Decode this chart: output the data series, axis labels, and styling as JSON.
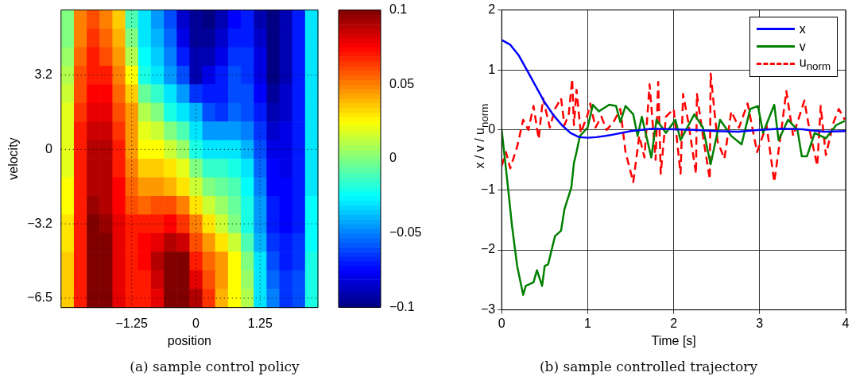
{
  "chart_data": [
    {
      "type": "heatmap",
      "xlabel": "position",
      "ylabel": "velocity",
      "grid": true,
      "categories": [
        null,
        null,
        null,
        null,
        null,
        "−1.25",
        null,
        null,
        null,
        null,
        "0",
        null,
        null,
        null,
        null,
        "1.25",
        null,
        null,
        null,
        null
      ],
      "y_categories": [
        null,
        null,
        null,
        "3.2",
        null,
        null,
        null,
        "0",
        null,
        null,
        null,
        "−3.2",
        null,
        null,
        null,
        "−6.5"
      ],
      "cells": [
        [
          0,
          0.05,
          0.06,
          0.05,
          0.035,
          -0.01,
          -0.03,
          -0.045,
          -0.06,
          -0.085,
          -0.095,
          -0.1,
          -0.09,
          -0.075,
          -0.07,
          -0.09,
          -0.1,
          -0.09,
          -0.07,
          -0.03
        ],
        [
          0,
          0.05,
          0.065,
          0.055,
          0.04,
          0,
          -0.03,
          -0.04,
          -0.055,
          -0.08,
          -0.095,
          -0.095,
          -0.085,
          -0.07,
          -0.07,
          -0.085,
          -0.1,
          -0.09,
          -0.07,
          -0.03
        ],
        [
          0.005,
          0.055,
          0.07,
          0.06,
          0.045,
          0.01,
          -0.025,
          -0.035,
          -0.05,
          -0.07,
          -0.09,
          -0.09,
          -0.08,
          -0.065,
          -0.065,
          -0.08,
          -0.1,
          -0.09,
          -0.07,
          -0.03
        ],
        [
          0.01,
          0.06,
          0.07,
          0.07,
          0.05,
          0.025,
          -0.02,
          -0.03,
          -0.045,
          -0.06,
          -0.09,
          -0.08,
          -0.07,
          -0.06,
          -0.065,
          -0.08,
          -0.1,
          -0.09,
          -0.07,
          -0.03
        ],
        [
          0.015,
          0.06,
          0.075,
          0.075,
          0.055,
          0.035,
          -0.005,
          -0.015,
          -0.03,
          -0.045,
          -0.065,
          -0.07,
          -0.07,
          -0.06,
          -0.06,
          -0.075,
          -0.095,
          -0.085,
          -0.07,
          -0.03
        ],
        [
          0.02,
          0.065,
          0.08,
          0.08,
          0.06,
          0.045,
          0.01,
          0,
          -0.02,
          -0.03,
          -0.04,
          -0.06,
          -0.065,
          -0.055,
          -0.06,
          -0.07,
          -0.09,
          -0.085,
          -0.07,
          -0.03
        ],
        [
          0.02,
          0.07,
          0.085,
          0.085,
          0.065,
          0.045,
          0.02,
          0.015,
          0,
          -0.01,
          -0.03,
          -0.045,
          -0.045,
          -0.045,
          -0.05,
          -0.065,
          -0.085,
          -0.08,
          -0.07,
          -0.03
        ],
        [
          0.02,
          0.07,
          0.09,
          0.09,
          0.07,
          0.045,
          0.025,
          0.025,
          0.015,
          0.005,
          -0.02,
          -0.03,
          -0.03,
          -0.03,
          -0.04,
          -0.06,
          -0.08,
          -0.08,
          -0.07,
          -0.03
        ],
        [
          0.02,
          0.07,
          0.09,
          0.09,
          0.07,
          0.05,
          0.035,
          0.035,
          0.03,
          0.02,
          0,
          -0.015,
          -0.015,
          -0.02,
          -0.03,
          -0.055,
          -0.075,
          -0.08,
          -0.07,
          -0.03
        ],
        [
          0.025,
          0.07,
          0.09,
          0.09,
          0.075,
          0.055,
          0.045,
          0.045,
          0.04,
          0.03,
          0.015,
          0,
          -0.005,
          -0.01,
          -0.025,
          -0.05,
          -0.075,
          -0.075,
          -0.07,
          -0.03
        ],
        [
          0.025,
          0.07,
          0.095,
          0.09,
          0.075,
          0.06,
          0.055,
          0.06,
          0.06,
          0.05,
          0.03,
          0.015,
          0.005,
          -0.005,
          -0.02,
          -0.045,
          -0.07,
          -0.075,
          -0.07,
          -0.025
        ],
        [
          0.03,
          0.07,
          0.1,
          0.095,
          0.08,
          0.07,
          0.07,
          0.07,
          0.075,
          0.065,
          0.05,
          0.03,
          0.015,
          0,
          -0.02,
          -0.045,
          -0.07,
          -0.075,
          -0.07,
          -0.025
        ],
        [
          0.03,
          0.07,
          0.1,
          0.1,
          0.08,
          0.07,
          0.075,
          0.08,
          0.09,
          0.085,
          0.06,
          0.045,
          0.03,
          0.015,
          -0.01,
          -0.04,
          -0.065,
          -0.07,
          -0.065,
          -0.025
        ],
        [
          0.035,
          0.07,
          0.1,
          0.1,
          0.08,
          0.07,
          0.075,
          0.09,
          0.1,
          0.1,
          0.07,
          0.055,
          0.045,
          0.025,
          0,
          -0.03,
          -0.06,
          -0.07,
          -0.065,
          -0.02
        ],
        [
          0.035,
          0.07,
          0.1,
          0.1,
          0.08,
          0.07,
          0.07,
          0.085,
          0.1,
          0.1,
          0.08,
          0.06,
          0.045,
          0.025,
          0.005,
          -0.03,
          -0.055,
          -0.065,
          -0.06,
          -0.02
        ],
        [
          0.035,
          0.07,
          0.1,
          0.1,
          0.08,
          0.07,
          0.07,
          0.08,
          0.1,
          0.1,
          0.09,
          0.065,
          0.04,
          0.025,
          0.01,
          -0.03,
          -0.05,
          -0.065,
          -0.06,
          -0.02
        ]
      ],
      "clim": [
        -0.1,
        0.1
      ],
      "cticks": [
        {
          "value": -0.1,
          "label": "−0.1"
        },
        {
          "value": -0.05,
          "label": "−0.05"
        },
        0,
        0.05,
        0.1
      ],
      "annotations": [
        "(a) sample control policy"
      ]
    },
    {
      "type": "line",
      "xlabel": "Time [s]",
      "ylabel": "x / v / u$_{norm}$",
      "grid": true,
      "legend": "top right",
      "marker": "none",
      "xlim": [
        0,
        4
      ],
      "xticks": [
        0,
        1,
        2,
        3,
        4
      ],
      "ylim": [
        -3,
        2
      ],
      "yticks": [
        {
          "value": -3,
          "label": "−3"
        },
        {
          "value": -2,
          "label": "−2"
        },
        {
          "value": -1,
          "label": "−1"
        },
        0,
        1,
        2
      ],
      "series": [
        {
          "name": "x",
          "color": "#0000ff",
          "x": [
            0,
            0.1,
            0.2,
            0.3,
            0.4,
            0.5,
            0.6,
            0.7,
            0.8,
            0.9,
            1.0,
            1.1,
            1.25,
            1.5,
            1.75,
            2,
            2.25,
            2.5,
            2.75,
            3,
            3.25,
            3.5,
            3.75,
            4
          ],
          "values": [
            1.5,
            1.42,
            1.24,
            0.98,
            0.72,
            0.46,
            0.25,
            0.08,
            -0.05,
            -0.12,
            -0.13,
            -0.12,
            -0.09,
            -0.02,
            0.02,
            0.01,
            0,
            -0.02,
            -0.03,
            0,
            0.02,
            0.01,
            -0.03,
            -0.02
          ]
        },
        {
          "name": "v",
          "color": "#008000",
          "x": [
            0,
            0.06,
            0.12,
            0.18,
            0.25,
            0.28,
            0.37,
            0.41,
            0.47,
            0.5,
            0.54,
            0.62,
            0.69,
            0.73,
            0.81,
            0.84,
            0.87,
            0.91,
            1.0,
            1.06,
            1.13,
            1.25,
            1.33,
            1.38,
            1.44,
            1.53,
            1.58,
            1.63,
            1.74,
            1.8,
            1.91,
            2.02,
            2.08,
            2.24,
            2.34,
            2.43,
            2.54,
            2.67,
            2.79,
            2.89,
            2.98,
            3.04,
            3.17,
            3.22,
            3.33,
            3.44,
            3.49,
            3.55,
            3.64,
            3.77,
            3.89,
            3.99
          ],
          "values": [
            0,
            -0.78,
            -1.6,
            -2.27,
            -2.75,
            -2.6,
            -2.54,
            -2.34,
            -2.6,
            -2.27,
            -2.24,
            -1.77,
            -1.68,
            -1.32,
            -0.96,
            -0.55,
            -0.37,
            -0.1,
            0.04,
            0.42,
            0.31,
            0.42,
            0.4,
            0.13,
            0.4,
            0.26,
            -0.1,
            0.22,
            -0.46,
            0.17,
            -0.05,
            0.17,
            -0.17,
            0.26,
            0.04,
            -0.57,
            0.17,
            -0.1,
            -0.24,
            0.35,
            0.4,
            -0.05,
            0.42,
            -0.17,
            0.17,
            0,
            -0.44,
            -0.44,
            -0.05,
            -0.14,
            0.08,
            0.15
          ]
        },
        {
          "name": "u$_{norm}$",
          "color": "#ff0000",
          "line_style": "dashed",
          "x": [
            0,
            0.05,
            0.1,
            0.18,
            0.25,
            0.31,
            0.37,
            0.43,
            0.48,
            0.56,
            0.62,
            0.69,
            0.73,
            0.78,
            0.82,
            0.84,
            0.87,
            0.92,
            1.0,
            1.03,
            1.09,
            1.16,
            1.22,
            1.3,
            1.38,
            1.44,
            1.53,
            1.6,
            1.66,
            1.72,
            1.79,
            1.82,
            1.85,
            1.91,
            2.0,
            2.08,
            2.11,
            2.17,
            2.26,
            2.27,
            2.35,
            2.42,
            2.43,
            2.51,
            2.59,
            2.67,
            2.76,
            2.86,
            2.97,
            3.08,
            3.17,
            3.26,
            3.31,
            3.39,
            3.52,
            3.58,
            3.67,
            3.71,
            3.77,
            3.86,
            3.92,
            3.99
          ],
          "values": [
            -0.6,
            -0.37,
            -0.64,
            -0.28,
            0.17,
            0,
            0.4,
            -0.15,
            0.53,
            0.04,
            0.35,
            0.53,
            0.08,
            0.26,
            0.85,
            0.08,
            0.67,
            -0.05,
            0.26,
            0.44,
            0.04,
            0.22,
            0,
            0.13,
            0.35,
            -0.37,
            -0.87,
            -0.1,
            -0.46,
            0.76,
            -0.5,
            0.8,
            -0.73,
            0.22,
            0.35,
            -0.73,
            0.6,
            0.13,
            -0.73,
            0.6,
            -0.19,
            -0.82,
            0.94,
            -0.19,
            -0.48,
            0.31,
            0.04,
            0.44,
            -0.37,
            0.08,
            -0.87,
            0.08,
            0.65,
            -0.1,
            0.49,
            0,
            -0.6,
            0.4,
            -0.42,
            0.13,
            0.35,
            0.17
          ]
        }
      ],
      "annotations": [
        "(b) sample controlled trajectory"
      ]
    }
  ]
}
